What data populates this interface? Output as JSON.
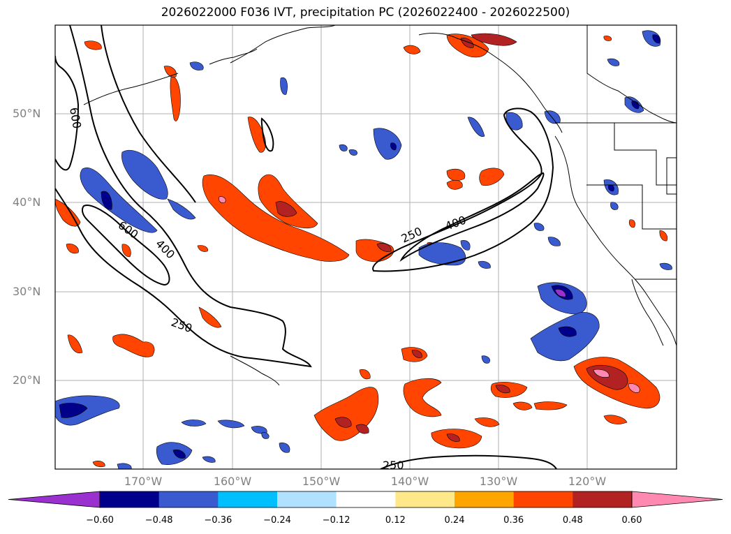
{
  "title": "2026022000 F036 IVT, precipitation PC (2026022400 - 2026022500)",
  "lat_labels": [
    "50°N",
    "40°N",
    "30°N",
    "20°N"
  ],
  "lon_labels": [
    "170°W",
    "160°W",
    "150°W",
    "140°W",
    "130°W",
    "120°W"
  ],
  "contour_labels": [
    "600",
    "600",
    "400",
    "250",
    "250",
    "400",
    "250"
  ],
  "colorbar": {
    "ticks": [
      "−0.60",
      "−0.48",
      "−0.36",
      "−0.24",
      "−0.12",
      "0.12",
      "0.24",
      "0.36",
      "0.48",
      "0.60"
    ],
    "colors": [
      "#9a30d0",
      "#00008b",
      "#3a5bd0",
      "#00bfff",
      "#b0e2ff",
      "#ffffff",
      "#ffe88a",
      "#ffa500",
      "#ff4500",
      "#b22222",
      "#ff89b0"
    ]
  }
}
